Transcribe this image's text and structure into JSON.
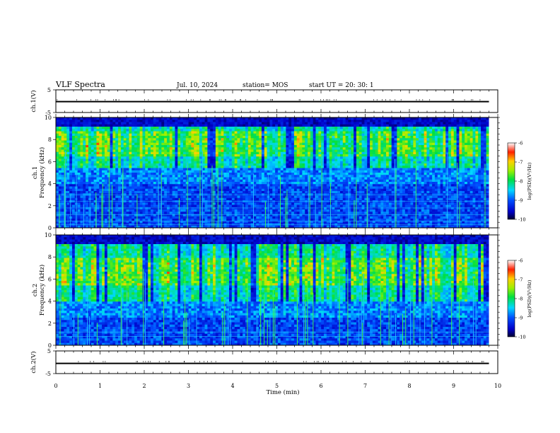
{
  "header": {
    "title": "VLF Spectra",
    "date": "Jul. 10, 2024",
    "station": "station= MOS",
    "start": "start UT = 20: 30: 1"
  },
  "chart_data": [
    {
      "type": "line",
      "id": "ch1-waveform",
      "ylabel": "ch.1(V)",
      "ylim": [
        -5,
        5
      ],
      "y_ticks": [
        "5",
        "-5"
      ],
      "x": [
        0,
        9.8
      ],
      "values": [
        -0.2,
        -0.2
      ]
    },
    {
      "type": "heatmap",
      "id": "ch1-spectrogram",
      "ylabel": "ch.1\nFrequency (kHz)",
      "ylim": [
        0,
        10
      ],
      "y_ticks": [
        "0",
        "2",
        "4",
        "6",
        "8",
        "10"
      ],
      "xlim": [
        0,
        10
      ],
      "data_extent_min": 9.8,
      "emission_band_khz": [
        5.5,
        9.2
      ],
      "peak_band_khz": [
        6.5,
        8.7
      ],
      "narrowband_lines_khz": [
        0.3,
        0.6,
        1.2,
        1.8,
        2.4,
        3.0
      ],
      "colorbar": {
        "label": "log(PSD)(V²/Hz)",
        "range": [
          -10,
          -6
        ],
        "ticks": [
          "-6",
          "-7",
          "-8",
          "-9",
          "-10"
        ]
      }
    },
    {
      "type": "heatmap",
      "id": "ch2-spectrogram",
      "ylabel": "ch.2\nFrequency (kHz)",
      "ylim": [
        0,
        10
      ],
      "y_ticks": [
        "0",
        "2",
        "4",
        "6",
        "8",
        "10"
      ],
      "xlim": [
        0,
        10
      ],
      "data_extent_min": 9.8,
      "emission_band_khz": [
        4.0,
        9.2
      ],
      "peak_band_khz": [
        5.5,
        8.0
      ],
      "narrowband_lines_khz": [
        0.8,
        1.2
      ],
      "colorbar": {
        "label": "log(PSD)(V²/Hz)",
        "range": [
          -10,
          -6
        ],
        "ticks": [
          "-6",
          "-7",
          "-8",
          "-9",
          "-10"
        ]
      }
    },
    {
      "type": "line",
      "id": "ch2-waveform",
      "ylabel": "ch.2(V)",
      "ylim": [
        -5,
        5
      ],
      "y_ticks": [
        "5",
        "-5"
      ],
      "x": [
        0,
        9.8
      ],
      "values": [
        -0.5,
        -0.5
      ]
    }
  ],
  "x_axis": {
    "label": "Time (min)",
    "range": [
      0,
      10
    ],
    "ticks": [
      "0",
      "1",
      "2",
      "3",
      "4",
      "5",
      "6",
      "7",
      "8",
      "9",
      "10"
    ]
  }
}
